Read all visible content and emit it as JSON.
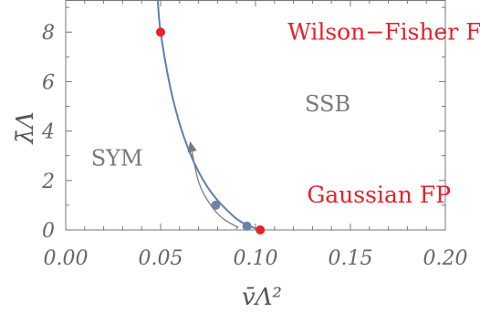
{
  "chart_data": {
    "type": "line",
    "xlabel": "v̄Λ²",
    "ylabel": "λ̄Λ",
    "xlim": [
      0,
      0.2
    ],
    "ylim": [
      0,
      9.3
    ],
    "x_ticks": [
      {
        "value": 0.0,
        "label": "0.00"
      },
      {
        "value": 0.05,
        "label": "0.05"
      },
      {
        "value": 0.1,
        "label": "0.10"
      },
      {
        "value": 0.15,
        "label": "0.15"
      },
      {
        "value": 0.2,
        "label": "0.20"
      }
    ],
    "y_ticks": [
      {
        "value": 0,
        "label": "0"
      },
      {
        "value": 2,
        "label": "2"
      },
      {
        "value": 4,
        "label": "4"
      },
      {
        "value": 6,
        "label": "6"
      },
      {
        "value": 8,
        "label": "8"
      }
    ],
    "grid": false,
    "series": [
      {
        "color": "#5b7fb4",
        "x": [
          0.0485,
          0.05,
          0.055,
          0.06,
          0.065,
          0.07,
          0.075,
          0.08,
          0.085,
          0.09,
          0.095,
          0.1,
          0.1025
        ],
        "y": [
          9.3,
          8.0,
          5.8,
          4.3,
          3.2,
          2.35,
          1.7,
          1.2,
          0.8,
          0.45,
          0.22,
          0.06,
          0.0
        ]
      }
    ],
    "points": [
      {
        "x": 0.05,
        "y": 8.0,
        "color": "#e8202a"
      },
      {
        "x": 0.1025,
        "y": 0.0,
        "color": "#e8202a"
      },
      {
        "x": 0.079,
        "y": 1.0,
        "color": "#6b82a8"
      },
      {
        "x": 0.0955,
        "y": 0.15,
        "color": "#6b82a8"
      }
    ],
    "flow_arrow": {
      "color": "#7a7a7a",
      "x": [
        0.091,
        0.083,
        0.076,
        0.07,
        0.066
      ],
      "y": [
        0.1,
        0.45,
        1.05,
        1.95,
        3.4
      ]
    },
    "annotations": [
      {
        "text": "Wilson−Fisher FP",
        "x": 0.172,
        "y": 7.7,
        "color": "#e8202a",
        "role": "fp"
      },
      {
        "text": "Gaussian FP",
        "x": 0.165,
        "y": 1.1,
        "color": "#e8202a",
        "role": "fp"
      },
      {
        "text": "SSB",
        "x": 0.138,
        "y": 4.8,
        "color": "#7a7a7a",
        "role": "region"
      },
      {
        "text": "SYM",
        "x": 0.027,
        "y": 2.6,
        "color": "#7a7a7a",
        "role": "region"
      }
    ]
  }
}
